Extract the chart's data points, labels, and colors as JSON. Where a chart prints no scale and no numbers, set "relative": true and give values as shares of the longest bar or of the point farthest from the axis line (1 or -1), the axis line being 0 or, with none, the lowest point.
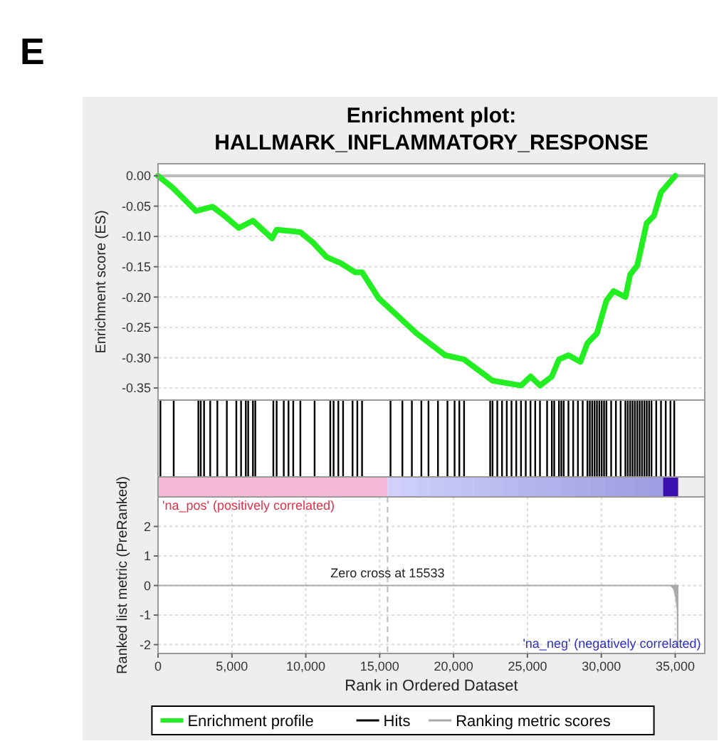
{
  "chart_data": [
    {
      "type": "line",
      "title": "Enrichment plot:",
      "subtitle": "HALLMARK_INFLAMMATORY_RESPONSE",
      "ylabel": "Enrichment score (ES)",
      "annotations": [
        "E"
      ],
      "xlim": [
        0,
        37000
      ],
      "ylim": [
        -0.37,
        0.02
      ],
      "yticks": [
        {
          "value": 0,
          "label": "0.00"
        },
        {
          "value": -0.05,
          "label": "-0.05"
        },
        {
          "value": -0.1,
          "label": "-0.10"
        },
        {
          "value": -0.15,
          "label": "-0.15"
        },
        {
          "value": -0.2,
          "label": "-0.20"
        },
        {
          "value": -0.25,
          "label": "-0.25"
        },
        {
          "value": -0.3,
          "label": "-0.30"
        },
        {
          "value": -0.35,
          "label": "-0.35"
        }
      ],
      "tick_labels": "y",
      "grid": true,
      "legend": "bottom",
      "ref_lines": [
        {
          "axis": "y",
          "value": 0
        }
      ],
      "series": [
        {
          "name": "Enrichment profile",
          "color": "#22ee22",
          "x": [
            0,
            960,
            2570,
            3690,
            4500,
            5460,
            6420,
            7710,
            8030,
            9310,
            9630,
            10440,
            11400,
            12360,
            13330,
            13810,
            14930,
            17500,
            19430,
            20710,
            22640,
            24570,
            25210,
            25850,
            26650,
            27130,
            27780,
            28580,
            29060,
            29700,
            30340,
            30830,
            31630,
            31950,
            32430,
            33070,
            33560,
            34040,
            35000
          ],
          "values": [
            0,
            -0.019,
            -0.058,
            -0.051,
            -0.066,
            -0.086,
            -0.074,
            -0.103,
            -0.089,
            -0.092,
            -0.093,
            -0.109,
            -0.134,
            -0.144,
            -0.159,
            -0.159,
            -0.202,
            -0.26,
            -0.296,
            -0.303,
            -0.338,
            -0.346,
            -0.331,
            -0.346,
            -0.331,
            -0.303,
            -0.296,
            -0.307,
            -0.276,
            -0.26,
            -0.206,
            -0.19,
            -0.2,
            -0.163,
            -0.148,
            -0.078,
            -0.066,
            -0.027,
            0
          ]
        }
      ]
    },
    {
      "type": "bar",
      "relative": true,
      "xlim": [
        0,
        37000
      ],
      "tick_labels": false,
      "legend": "bottom",
      "series": [
        {
          "name": "Hits",
          "color": "#000000",
          "x": [
            161,
            1060,
            2729,
            2890,
            3115,
            3532,
            4014,
            4656,
            5298,
            5619,
            5940,
            6101,
            6422,
            6582,
            7803,
            8027,
            8509,
            8830,
            9151,
            9633,
            10596,
            11656,
            11881,
            12202,
            12523,
            13165,
            13486,
            13807,
            15734,
            16537,
            17179,
            17821,
            18303,
            18945,
            19587,
            20069,
            20390,
            20711,
            22477,
            22638,
            22959,
            23280,
            23601,
            23922,
            24243,
            24564,
            24885,
            25206,
            25527,
            25848,
            26330,
            26651,
            26812,
            27133,
            27294,
            27454,
            27775,
            28096,
            28417,
            28738,
            29060,
            29221,
            29381,
            29542,
            29702,
            29863,
            30023,
            30184,
            30344,
            30665,
            30986,
            31307,
            31628,
            31789,
            31949,
            32110,
            32271,
            32431,
            32592,
            32752,
            32913,
            33074,
            33234,
            33395,
            33716,
            34037,
            34358,
            34678,
            34935
          ],
          "values": [
            1,
            1,
            1,
            1,
            1,
            1,
            1,
            1,
            1,
            1,
            1,
            1,
            1,
            1,
            1,
            1,
            1,
            1,
            1,
            1,
            1,
            1,
            1,
            1,
            1,
            1,
            1,
            1,
            1,
            1,
            1,
            1,
            1,
            1,
            1,
            1,
            1,
            1,
            1,
            1,
            1,
            1,
            1,
            1,
            1,
            1,
            1,
            1,
            1,
            1,
            1,
            1,
            1,
            1,
            1,
            1,
            1,
            1,
            1,
            1,
            1,
            1,
            1,
            1,
            1,
            1,
            1,
            1,
            1,
            1,
            1,
            1,
            1,
            1,
            1,
            1,
            1,
            1,
            1,
            1,
            1,
            1,
            1,
            1,
            1,
            1,
            1,
            1,
            1
          ]
        }
      ]
    },
    {
      "type": "area",
      "xlabel": "Rank in Ordered Dataset",
      "ylabel": "Ranked list metric (PreRanked)",
      "xlim": [
        0,
        37000
      ],
      "xticks": [
        0,
        {
          "value": 5000,
          "label": "5,000"
        },
        {
          "value": 10000,
          "label": "10,000"
        },
        {
          "value": 15000,
          "label": "15,000"
        },
        {
          "value": 20000,
          "label": "20,000"
        },
        {
          "value": 25000,
          "label": "25,000"
        },
        {
          "value": 30000,
          "label": "30,000"
        },
        {
          "value": 35000,
          "label": "35,000"
        }
      ],
      "ylim": [
        -2.3,
        3
      ],
      "yticks": [
        -2,
        -1,
        0,
        1,
        2
      ],
      "grid": true,
      "legend": "bottom",
      "ref_lines": [
        {
          "axis": "x",
          "value": 15533,
          "label": "Zero cross at 15533"
        }
      ],
      "annotations": [
        "'na_pos' (positively correlated)",
        "'na_neg' (negatively correlated)"
      ],
      "series": [
        {
          "name": "Ranking metric scores",
          "color": "#aaaaaa",
          "x": [
            0,
            34700,
            34900,
            35050,
            35150,
            35170
          ],
          "values": [
            0,
            0,
            -0.1,
            -0.4,
            -0.8,
            -2.1
          ]
        }
      ]
    }
  ]
}
